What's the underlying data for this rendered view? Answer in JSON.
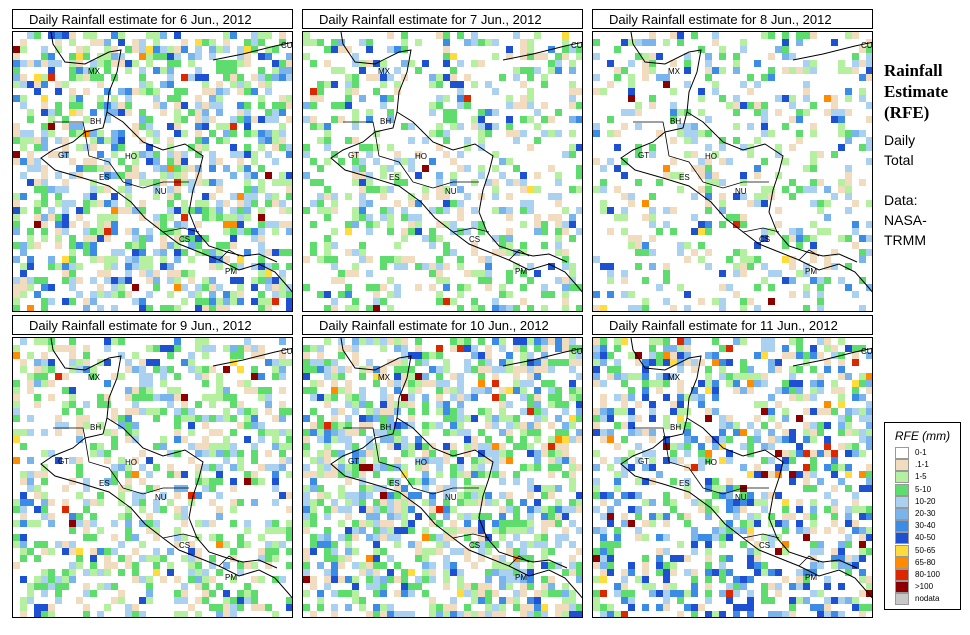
{
  "panels": [
    {
      "title": "Daily Rainfall estimate for  6 Jun., 2012",
      "wet": 0.55,
      "heavy": 0.25
    },
    {
      "title": "Daily Rainfall estimate for  7 Jun., 2012",
      "wet": 0.35,
      "heavy": 0.12
    },
    {
      "title": "Daily Rainfall estimate for  8 Jun., 2012",
      "wet": 0.3,
      "heavy": 0.15
    },
    {
      "title": "Daily Rainfall estimate for  9 Jun., 2012",
      "wet": 0.45,
      "heavy": 0.15
    },
    {
      "title": "Daily Rainfall estimate for  10 Jun., 2012",
      "wet": 0.6,
      "heavy": 0.2
    },
    {
      "title": "Daily Rainfall estimate for  11 Jun., 2012",
      "wet": 0.5,
      "heavy": 0.4
    }
  ],
  "country_labels": [
    "CU",
    "MX",
    "BH",
    "GT",
    "HO",
    "ES",
    "NU",
    "CS",
    "PM"
  ],
  "side": {
    "title_line1": "Rainfall",
    "title_line2": "Estimate",
    "title_line3": "(RFE)",
    "period_line1": "Daily",
    "period_line2": "Total",
    "source_line1": "Data:",
    "source_line2": "NASA-",
    "source_line3": "TRMM"
  },
  "legend": {
    "title": "RFE (mm)",
    "items": [
      {
        "label": "0-1",
        "color": "#ffffff"
      },
      {
        "label": ".1-1",
        "color": "#f2dcc0"
      },
      {
        "label": "1-5",
        "color": "#b4f0a0"
      },
      {
        "label": "5-10",
        "color": "#5fdc6e"
      },
      {
        "label": "10-20",
        "color": "#aad2f0"
      },
      {
        "label": "20-30",
        "color": "#7ab4ec"
      },
      {
        "label": "30-40",
        "color": "#3c8ce6"
      },
      {
        "label": "40-50",
        "color": "#1e50d2"
      },
      {
        "label": "50-65",
        "color": "#ffdc3c"
      },
      {
        "label": "65-80",
        "color": "#ff8c00"
      },
      {
        "label": "80-100",
        "color": "#dc2800"
      },
      {
        "label": ">100",
        "color": "#8c0000"
      },
      {
        "label": "nodata",
        "color": "#c8c8c8"
      }
    ]
  }
}
